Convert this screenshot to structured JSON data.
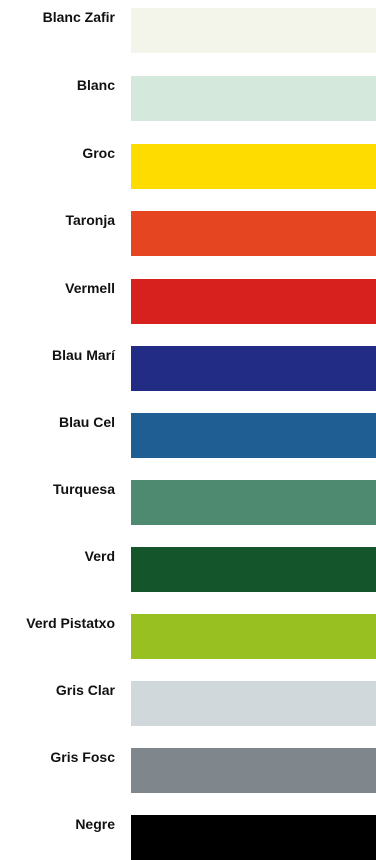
{
  "colors": [
    {
      "name": "Blanc Zafir",
      "hex": "#F4F5EA"
    },
    {
      "name": "Blanc",
      "hex": "#D4E9DB"
    },
    {
      "name": "Groc",
      "hex": "#FEDC00"
    },
    {
      "name": "Taronja",
      "hex": "#E64522"
    },
    {
      "name": "Vermell",
      "hex": "#D6211E"
    },
    {
      "name": "Blau Marí",
      "hex": "#232C84"
    },
    {
      "name": "Blau Cel",
      "hex": "#1E5E93"
    },
    {
      "name": "Turquesa",
      "hex": "#4E8A6F"
    },
    {
      "name": "Verd",
      "hex": "#14552C"
    },
    {
      "name": "Verd Pistatxo",
      "hex": "#98C020"
    },
    {
      "name": "Gris Clar",
      "hex": "#D0D8DB"
    },
    {
      "name": "Gris Fosc",
      "hex": "#80878C"
    },
    {
      "name": "Negre",
      "hex": "#000000"
    }
  ]
}
